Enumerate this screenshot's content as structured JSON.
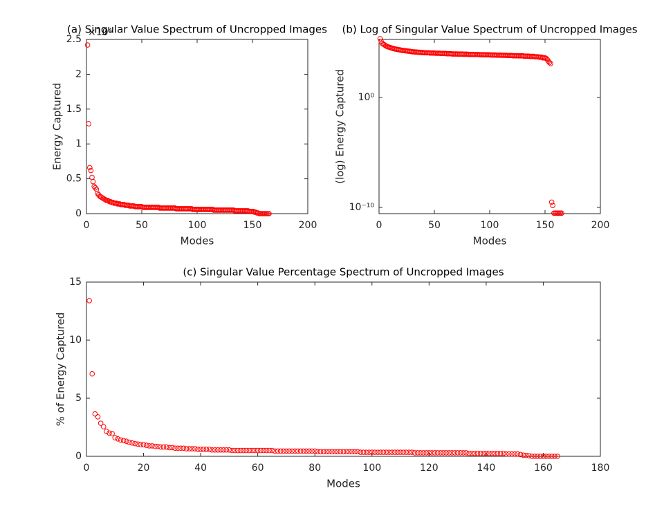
{
  "chart_data": [
    {
      "type": "scatter",
      "title": "(a) Singular Value Spectrum of Uncropped Images",
      "x_label": "Modes",
      "y_label": "Energy Captured",
      "y_exponent": "×10⁴",
      "color": "#ff0000",
      "xlim": [
        0,
        200
      ],
      "xticks": [
        0,
        50,
        100,
        150,
        200
      ],
      "ylim": [
        0,
        2.5
      ],
      "yticks": [
        0,
        0.5,
        1,
        1.5,
        2,
        2.5
      ],
      "x": [
        1,
        2,
        3,
        4,
        5,
        6,
        7,
        8,
        9,
        10,
        11,
        12,
        13,
        14,
        15,
        16,
        17,
        18,
        19,
        20,
        21,
        22,
        23,
        24,
        25,
        26,
        27,
        28,
        29,
        30,
        31,
        32,
        33,
        34,
        35,
        36,
        37,
        38,
        39,
        40,
        41,
        42,
        43,
        44,
        45,
        46,
        47,
        48,
        49,
        50,
        51,
        52,
        53,
        54,
        55,
        56,
        57,
        58,
        59,
        60,
        61,
        62,
        63,
        64,
        65,
        66,
        67,
        68,
        69,
        70,
        71,
        72,
        73,
        74,
        75,
        76,
        77,
        78,
        79,
        80,
        81,
        82,
        83,
        84,
        85,
        86,
        87,
        88,
        89,
        90,
        91,
        92,
        93,
        94,
        95,
        96,
        97,
        98,
        99,
        100,
        101,
        102,
        103,
        104,
        105,
        106,
        107,
        108,
        109,
        110,
        111,
        112,
        113,
        114,
        115,
        116,
        117,
        118,
        119,
        120,
        121,
        122,
        123,
        124,
        125,
        126,
        127,
        128,
        129,
        130,
        131,
        132,
        133,
        134,
        135,
        136,
        137,
        138,
        139,
        140,
        141,
        142,
        143,
        144,
        145,
        146,
        147,
        148,
        149,
        150,
        151,
        152,
        153,
        154,
        155,
        156,
        157,
        158,
        159,
        160,
        161,
        162,
        163,
        164,
        165
      ],
      "values": [
        2.42,
        1.29,
        0.66,
        0.62,
        0.52,
        0.46,
        0.39,
        0.37,
        0.35,
        0.29,
        0.27,
        0.25,
        0.24,
        0.23,
        0.22,
        0.21,
        0.2,
        0.19,
        0.19,
        0.18,
        0.17,
        0.17,
        0.16,
        0.16,
        0.15,
        0.15,
        0.15,
        0.14,
        0.14,
        0.14,
        0.13,
        0.13,
        0.13,
        0.13,
        0.12,
        0.12,
        0.12,
        0.12,
        0.11,
        0.11,
        0.11,
        0.11,
        0.11,
        0.1,
        0.1,
        0.1,
        0.1,
        0.1,
        0.1,
        0.1,
        0.09,
        0.09,
        0.09,
        0.09,
        0.09,
        0.09,
        0.09,
        0.09,
        0.09,
        0.09,
        0.09,
        0.09,
        0.09,
        0.09,
        0.09,
        0.08,
        0.08,
        0.08,
        0.08,
        0.08,
        0.08,
        0.08,
        0.08,
        0.08,
        0.08,
        0.08,
        0.08,
        0.08,
        0.08,
        0.08,
        0.07,
        0.07,
        0.07,
        0.07,
        0.07,
        0.07,
        0.07,
        0.07,
        0.07,
        0.07,
        0.07,
        0.07,
        0.07,
        0.07,
        0.07,
        0.06,
        0.06,
        0.06,
        0.06,
        0.06,
        0.06,
        0.06,
        0.06,
        0.06,
        0.06,
        0.06,
        0.06,
        0.06,
        0.06,
        0.06,
        0.06,
        0.06,
        0.06,
        0.06,
        0.05,
        0.05,
        0.05,
        0.05,
        0.05,
        0.05,
        0.05,
        0.05,
        0.05,
        0.05,
        0.05,
        0.05,
        0.05,
        0.05,
        0.05,
        0.05,
        0.05,
        0.05,
        0.05,
        0.04,
        0.04,
        0.04,
        0.04,
        0.04,
        0.04,
        0.04,
        0.04,
        0.04,
        0.04,
        0.04,
        0.04,
        0.04,
        0.03,
        0.03,
        0.03,
        0.03,
        0.03,
        0.02,
        0.02,
        0.01,
        0.01,
        0,
        0,
        0,
        0,
        0,
        0,
        0,
        0,
        0,
        0
      ]
    },
    {
      "type": "scatter",
      "title": "(b) Log of Singular Value Spectrum of Uncropped Images",
      "x_label": "Modes",
      "y_label": "(log) Energy Captured",
      "y_log": true,
      "color": "#ff0000",
      "xlim": [
        0,
        200
      ],
      "xticks": [
        0,
        50,
        100,
        150,
        200
      ],
      "ylim": [
        2.7e-11,
        190000
      ],
      "yticks": [
        {
          "value": 1,
          "label": "10⁰"
        },
        {
          "value": 1e-10,
          "label": "10⁻¹⁰"
        }
      ],
      "x": [
        1,
        2,
        3,
        4,
        5,
        6,
        7,
        8,
        9,
        10,
        11,
        12,
        13,
        14,
        15,
        16,
        17,
        18,
        19,
        20,
        21,
        22,
        23,
        24,
        25,
        26,
        27,
        28,
        29,
        30,
        31,
        32,
        33,
        34,
        35,
        36,
        37,
        38,
        39,
        40,
        41,
        42,
        43,
        44,
        45,
        46,
        47,
        48,
        49,
        50,
        51,
        52,
        53,
        54,
        55,
        56,
        57,
        58,
        59,
        60,
        61,
        62,
        63,
        64,
        65,
        66,
        67,
        68,
        69,
        70,
        71,
        72,
        73,
        74,
        75,
        76,
        77,
        78,
        79,
        80,
        81,
        82,
        83,
        84,
        85,
        86,
        87,
        88,
        89,
        90,
        91,
        92,
        93,
        94,
        95,
        96,
        97,
        98,
        99,
        100,
        101,
        102,
        103,
        104,
        105,
        106,
        107,
        108,
        109,
        110,
        111,
        112,
        113,
        114,
        115,
        116,
        117,
        118,
        119,
        120,
        121,
        122,
        123,
        124,
        125,
        126,
        127,
        128,
        129,
        130,
        131,
        132,
        133,
        134,
        135,
        136,
        137,
        138,
        139,
        140,
        141,
        142,
        143,
        144,
        145,
        146,
        147,
        148,
        149,
        150,
        151,
        152,
        153,
        154,
        155,
        156,
        157,
        158,
        159,
        160,
        161,
        162,
        163,
        164,
        165
      ],
      "values": [
        220000,
        120000,
        80000,
        70000,
        60000,
        50000,
        45000,
        40000,
        38000,
        35000,
        32000,
        30000,
        28000,
        26000,
        25000,
        24000,
        23000,
        22000,
        21000,
        20000,
        19000,
        18500,
        18000,
        17500,
        17000,
        16500,
        16000,
        15500,
        15000,
        14500,
        14000,
        14000,
        13500,
        13500,
        13000,
        13000,
        12500,
        12500,
        12000,
        12000,
        11500,
        11500,
        11500,
        11500,
        11500,
        11000,
        11000,
        11000,
        11000,
        11000,
        10500,
        10500,
        10500,
        10500,
        10500,
        10000,
        10000,
        10000,
        10000,
        10000,
        9500,
        9500,
        9500,
        9500,
        9500,
        9000,
        9000,
        9000,
        9000,
        9000,
        8800,
        8800,
        8800,
        8800,
        8800,
        8500,
        8500,
        8500,
        8500,
        8500,
        8200,
        8200,
        8200,
        8200,
        8200,
        8000,
        8000,
        8000,
        8000,
        8000,
        7700,
        7700,
        7700,
        7700,
        7700,
        7500,
        7500,
        7500,
        7500,
        7500,
        7200,
        7200,
        7200,
        7200,
        7200,
        7000,
        7000,
        7000,
        7000,
        7000,
        6800,
        6800,
        6800,
        6800,
        6800,
        6500,
        6500,
        6500,
        6500,
        6500,
        6200,
        6200,
        6200,
        6200,
        6200,
        6000,
        6000,
        6000,
        6000,
        6000,
        5700,
        5700,
        5700,
        5700,
        5700,
        5400,
        5400,
        5400,
        5400,
        5400,
        5000,
        5000,
        5000,
        5000,
        4600,
        4600,
        4600,
        4000,
        4000,
        4000,
        3500,
        2800,
        2000,
        1500,
        1200,
        3e-10,
        1.5e-10,
        3e-11,
        3e-11,
        3e-11,
        3e-11,
        3e-11,
        3e-11,
        3e-11,
        3e-11
      ]
    },
    {
      "type": "scatter",
      "title": "(c) Singular Value Percentage Spectrum of Uncropped Images",
      "x_label": "Modes",
      "y_label": "% of Energy Captured",
      "color": "#ff0000",
      "xlim": [
        0,
        180
      ],
      "xticks": [
        0,
        20,
        40,
        60,
        80,
        100,
        120,
        140,
        160,
        180
      ],
      "ylim": [
        0,
        15
      ],
      "yticks": [
        0,
        5,
        10,
        15
      ],
      "x": [
        1,
        2,
        3,
        4,
        5,
        6,
        7,
        8,
        9,
        10,
        11,
        12,
        13,
        14,
        15,
        16,
        17,
        18,
        19,
        20,
        21,
        22,
        23,
        24,
        25,
        26,
        27,
        28,
        29,
        30,
        31,
        32,
        33,
        34,
        35,
        36,
        37,
        38,
        39,
        40,
        41,
        42,
        43,
        44,
        45,
        46,
        47,
        48,
        49,
        50,
        51,
        52,
        53,
        54,
        55,
        56,
        57,
        58,
        59,
        60,
        61,
        62,
        63,
        64,
        65,
        66,
        67,
        68,
        69,
        70,
        71,
        72,
        73,
        74,
        75,
        76,
        77,
        78,
        79,
        80,
        81,
        82,
        83,
        84,
        85,
        86,
        87,
        88,
        89,
        90,
        91,
        92,
        93,
        94,
        95,
        96,
        97,
        98,
        99,
        100,
        101,
        102,
        103,
        104,
        105,
        106,
        107,
        108,
        109,
        110,
        111,
        112,
        113,
        114,
        115,
        116,
        117,
        118,
        119,
        120,
        121,
        122,
        123,
        124,
        125,
        126,
        127,
        128,
        129,
        130,
        131,
        132,
        133,
        134,
        135,
        136,
        137,
        138,
        139,
        140,
        141,
        142,
        143,
        144,
        145,
        146,
        147,
        148,
        149,
        150,
        151,
        152,
        153,
        154,
        155,
        156,
        157,
        158,
        159,
        160,
        161,
        162,
        163,
        164,
        165
      ],
      "values": [
        13.4,
        7.1,
        3.65,
        3.4,
        2.85,
        2.55,
        2.15,
        2.0,
        1.95,
        1.6,
        1.5,
        1.4,
        1.35,
        1.3,
        1.2,
        1.15,
        1.1,
        1.05,
        1.0,
        1.0,
        0.95,
        0.9,
        0.9,
        0.85,
        0.85,
        0.8,
        0.8,
        0.8,
        0.75,
        0.75,
        0.7,
        0.7,
        0.7,
        0.7,
        0.65,
        0.65,
        0.65,
        0.65,
        0.6,
        0.6,
        0.6,
        0.6,
        0.6,
        0.55,
        0.55,
        0.55,
        0.55,
        0.55,
        0.55,
        0.55,
        0.5,
        0.5,
        0.5,
        0.5,
        0.5,
        0.5,
        0.5,
        0.5,
        0.5,
        0.5,
        0.5,
        0.5,
        0.5,
        0.5,
        0.5,
        0.45,
        0.45,
        0.45,
        0.45,
        0.45,
        0.45,
        0.45,
        0.45,
        0.45,
        0.45,
        0.45,
        0.45,
        0.45,
        0.45,
        0.45,
        0.4,
        0.4,
        0.4,
        0.4,
        0.4,
        0.4,
        0.4,
        0.4,
        0.4,
        0.4,
        0.4,
        0.4,
        0.4,
        0.4,
        0.4,
        0.35,
        0.35,
        0.35,
        0.35,
        0.35,
        0.35,
        0.35,
        0.35,
        0.35,
        0.35,
        0.35,
        0.35,
        0.35,
        0.35,
        0.35,
        0.35,
        0.35,
        0.35,
        0.35,
        0.3,
        0.3,
        0.3,
        0.3,
        0.3,
        0.3,
        0.3,
        0.3,
        0.3,
        0.3,
        0.3,
        0.3,
        0.3,
        0.3,
        0.3,
        0.3,
        0.3,
        0.3,
        0.3,
        0.25,
        0.25,
        0.25,
        0.25,
        0.25,
        0.25,
        0.25,
        0.25,
        0.25,
        0.25,
        0.25,
        0.25,
        0.25,
        0.2,
        0.2,
        0.2,
        0.2,
        0.2,
        0.15,
        0.1,
        0.08,
        0.05,
        0,
        0,
        0,
        0,
        0,
        0,
        0,
        0,
        0,
        0
      ]
    }
  ]
}
